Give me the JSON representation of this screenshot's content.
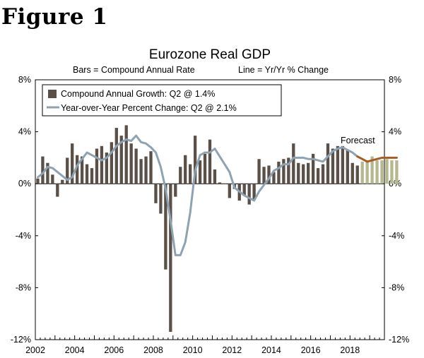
{
  "figure_label": "Figure 1",
  "chart_data": {
    "type": "bar",
    "title": "Eurozone Real GDP",
    "subtitle_left": "Bars = Compound Annual Rate",
    "subtitle_right": "Line = Yr/Yr % Change",
    "ylim": [
      -12,
      8
    ],
    "y_ticks": [
      8,
      4,
      0,
      -4,
      -8,
      -12
    ],
    "y_tick_labels": [
      "8%",
      "4%",
      "0%",
      "-4%",
      "-8%",
      "-12%"
    ],
    "x_tick_labels": [
      "2002",
      "2004",
      "2006",
      "2008",
      "2010",
      "2012",
      "2014",
      "2016",
      "2018"
    ],
    "annotation": "Forecast",
    "legend": [
      {
        "label": "Compound Annual Growth: Q2 @ 1.4%",
        "kind": "bar",
        "color": "#5b5048"
      },
      {
        "label": "Year-over-Year Percent Change: Q2 @ 2.1%",
        "kind": "line",
        "color": "#8ea3b1"
      }
    ],
    "colors": {
      "actual_bar": "#5b5048",
      "forecast_bar": "#b5b88f",
      "line": "#8ea3b1",
      "forecast_line": "#a85c25"
    },
    "x_range_quarters": [
      2002.0,
      2019.75
    ],
    "series": [
      {
        "name": "Compound Annual Growth",
        "kind": "bar",
        "start": "2002Q1",
        "values": [
          0.4,
          2.1,
          1.6,
          0.7,
          -1.0,
          0.3,
          2.0,
          3.1,
          2.2,
          2.1,
          1.5,
          1.2,
          2.7,
          2.9,
          2.4,
          3.2,
          4.3,
          3.7,
          4.5,
          3.1,
          2.7,
          1.9,
          2.1,
          2.5,
          -1.5,
          -2.3,
          -6.6,
          -11.4,
          -1.0,
          1.3,
          2.2,
          1.5,
          3.7,
          1.8,
          2.3,
          3.4,
          1.1,
          0.1,
          0.0,
          -1.1,
          -0.4,
          -1.3,
          -0.9,
          -1.6,
          -1.2,
          1.9,
          1.3,
          1.4,
          0.9,
          1.7,
          1.9,
          2.0,
          3.1,
          1.6,
          1.5,
          1.6,
          2.3,
          1.2,
          1.5,
          3.1,
          2.7,
          2.9,
          2.9,
          2.6,
          1.6,
          1.4
        ]
      },
      {
        "name": "Compound Annual Growth (Forecast)",
        "kind": "bar",
        "start": "2018Q3",
        "values": [
          1.7,
          1.8,
          2.1,
          1.8,
          1.8,
          1.9,
          1.8,
          1.8
        ]
      },
      {
        "name": "Year-over-Year Percent Change",
        "kind": "line",
        "start": "2002Q1",
        "values": [
          0.5,
          0.8,
          1.3,
          1.2,
          0.9,
          0.6,
          0.3,
          0.5,
          1.4,
          1.9,
          2.4,
          2.2,
          2.0,
          1.8,
          2.0,
          2.4,
          2.9,
          3.2,
          3.4,
          3.3,
          3.7,
          3.2,
          3.1,
          2.8,
          2.4,
          1.3,
          -0.4,
          -2.8,
          -5.5,
          -5.5,
          -4.5,
          -2.2,
          1.0,
          2.2,
          2.4,
          2.4,
          2.7,
          2.1,
          1.5,
          0.9,
          -0.3,
          -0.6,
          -0.9,
          -1.1,
          -1.3,
          -0.6,
          -0.1,
          0.4,
          1.0,
          1.2,
          1.5,
          1.5,
          2.0,
          2.0,
          2.0,
          1.9,
          1.9,
          1.8,
          1.7,
          2.1,
          2.5,
          2.7,
          2.8,
          2.6,
          2.4,
          2.1
        ]
      },
      {
        "name": "Year-over-Year Percent Change (Forecast)",
        "kind": "line",
        "start": "2018Q2",
        "values": [
          2.1,
          1.9,
          1.7,
          1.8,
          1.9,
          2.0,
          2.0,
          2.0,
          2.0
        ]
      }
    ]
  }
}
